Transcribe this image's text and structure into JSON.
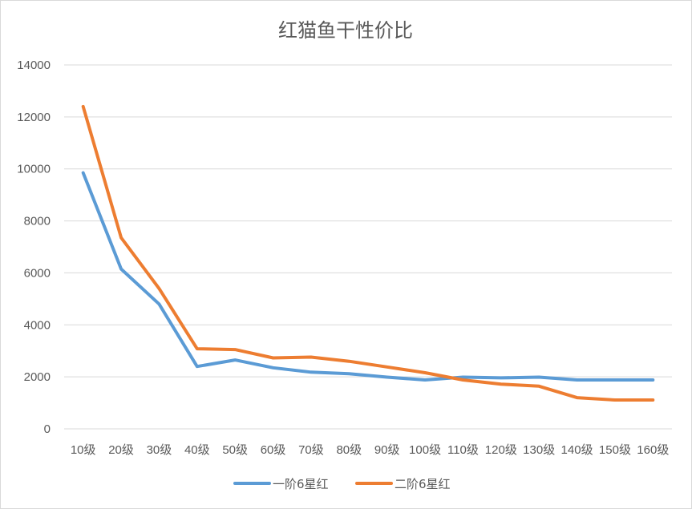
{
  "chart_data": {
    "type": "line",
    "title": "红猫鱼干性价比",
    "xlabel": "",
    "ylabel": "",
    "categories": [
      "10级",
      "20级",
      "30级",
      "40级",
      "50级",
      "60级",
      "70级",
      "80级",
      "90级",
      "100级",
      "110级",
      "120级",
      "130级",
      "140级",
      "150级",
      "160级"
    ],
    "ylim": [
      0,
      14000
    ],
    "yticks": [
      0,
      2000,
      4000,
      6000,
      8000,
      10000,
      12000,
      14000
    ],
    "grid": true,
    "legend_position": "bottom",
    "series": [
      {
        "name": "一阶6星红",
        "color": "#5b9bd5",
        "values": [
          9850,
          6150,
          4800,
          2400,
          2650,
          2350,
          2180,
          2120,
          1990,
          1880,
          1990,
          1960,
          1990,
          1880,
          1880,
          1880
        ]
      },
      {
        "name": "二阶6星红",
        "color": "#ed7d31",
        "values": [
          12400,
          7350,
          5400,
          3080,
          3050,
          2730,
          2760,
          2600,
          2380,
          2160,
          1880,
          1720,
          1640,
          1200,
          1110,
          1110
        ]
      }
    ]
  }
}
